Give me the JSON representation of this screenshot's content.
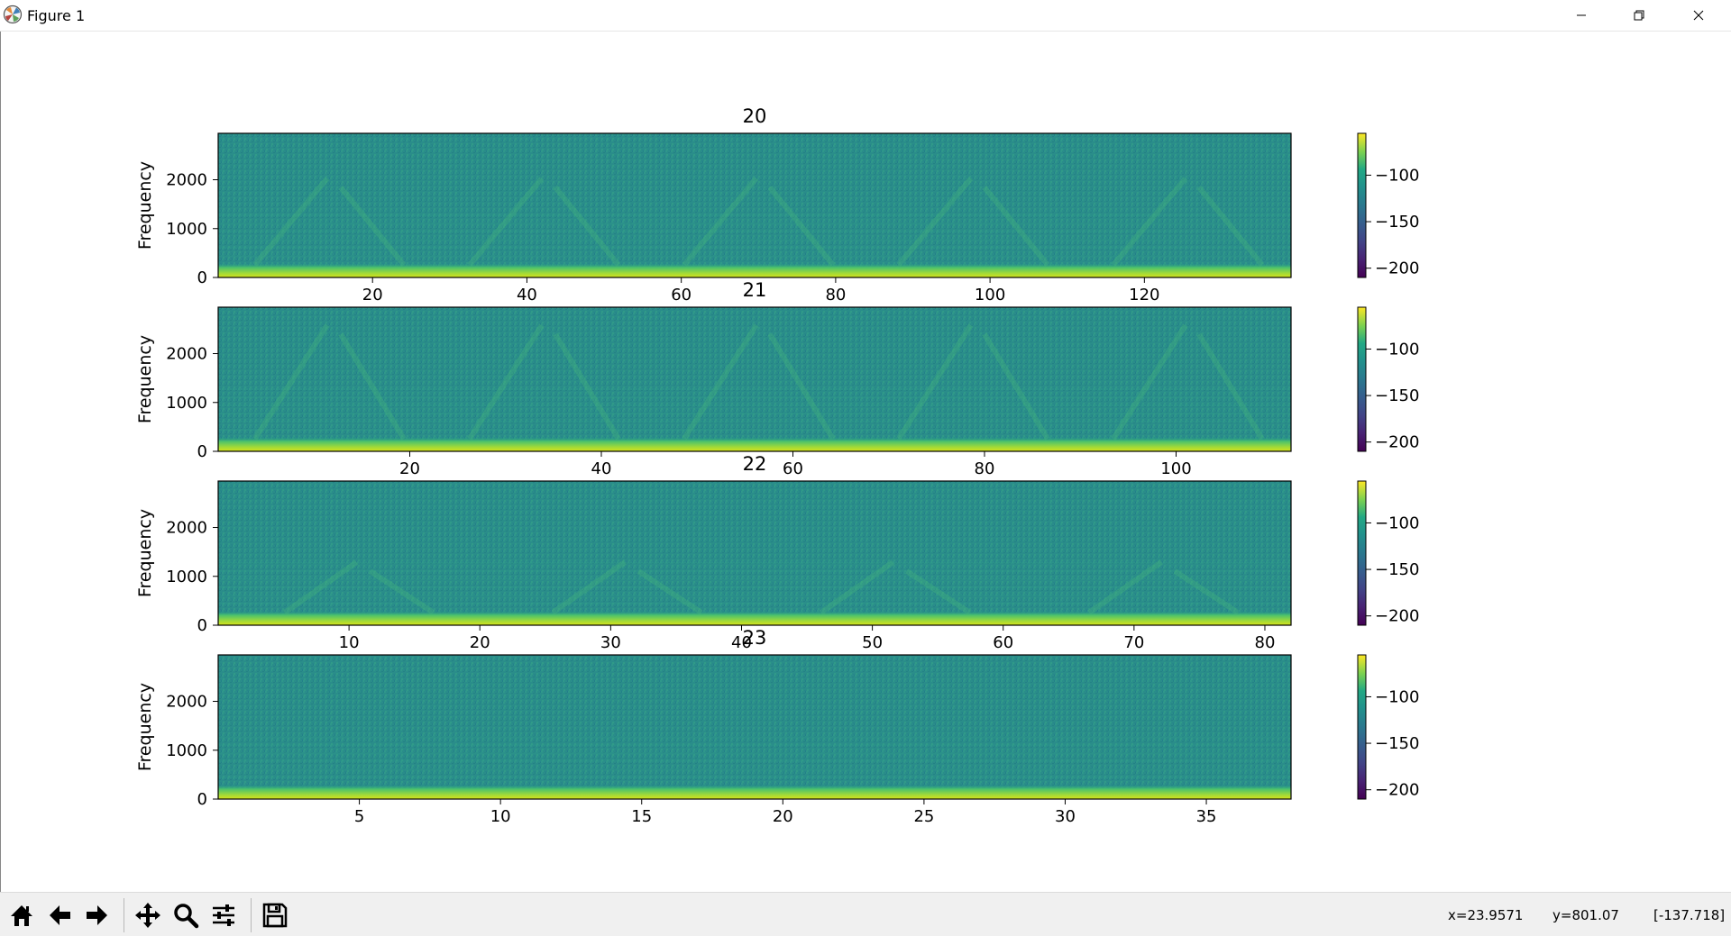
{
  "window": {
    "title": "Figure 1",
    "controls": {
      "minimize": "minimize",
      "restore": "restore",
      "close": "close"
    }
  },
  "toolbar": {
    "buttons": [
      {
        "id": "home",
        "icon": "home-icon"
      },
      {
        "id": "back",
        "icon": "arrow-left-icon"
      },
      {
        "id": "forward",
        "icon": "arrow-right-icon"
      },
      {
        "id": "pan",
        "icon": "move-icon"
      },
      {
        "id": "zoom",
        "icon": "magnifier-icon"
      },
      {
        "id": "subplots",
        "icon": "sliders-icon"
      },
      {
        "id": "save",
        "icon": "floppy-icon"
      }
    ],
    "status": {
      "x": "x=23.9571",
      "y": "y=801.07",
      "value": "[-137.718]"
    }
  },
  "chart_data": [
    {
      "type": "heatmap",
      "title": "20",
      "ylabel": "Frequency",
      "xlim": [
        0,
        139
      ],
      "ylim": [
        0,
        2950
      ],
      "xticks": [
        20,
        40,
        60,
        80,
        100,
        120
      ],
      "yticks": [
        0,
        1000,
        2000
      ],
      "colorbar": {
        "ticks": [
          -100,
          -150,
          -200
        ],
        "range": [
          -210,
          -55
        ],
        "colormap": "viridis"
      }
    },
    {
      "type": "heatmap",
      "title": "21",
      "ylabel": "Frequency",
      "xlim": [
        0,
        112
      ],
      "ylim": [
        0,
        2950
      ],
      "xticks": [
        20,
        40,
        60,
        80,
        100
      ],
      "yticks": [
        0,
        1000,
        2000
      ],
      "colorbar": {
        "ticks": [
          -100,
          -150,
          -200
        ],
        "range": [
          -210,
          -55
        ],
        "colormap": "viridis"
      }
    },
    {
      "type": "heatmap",
      "title": "22",
      "ylabel": "Frequency",
      "xlim": [
        0,
        82
      ],
      "ylim": [
        0,
        2950
      ],
      "xticks": [
        10,
        20,
        30,
        40,
        50,
        60,
        70,
        80
      ],
      "yticks": [
        0,
        1000,
        2000
      ],
      "colorbar": {
        "ticks": [
          -100,
          -150,
          -200
        ],
        "range": [
          -210,
          -55
        ],
        "colormap": "viridis"
      }
    },
    {
      "type": "heatmap",
      "title": "23",
      "ylabel": "Frequency",
      "xlim": [
        0,
        38
      ],
      "ylim": [
        0,
        2950
      ],
      "xticks": [
        5,
        10,
        15,
        20,
        25,
        30,
        35
      ],
      "yticks": [
        0,
        1000,
        2000
      ],
      "colorbar": {
        "ticks": [
          -100,
          -150,
          -200
        ],
        "range": [
          -210,
          -55
        ],
        "colormap": "viridis"
      }
    }
  ]
}
